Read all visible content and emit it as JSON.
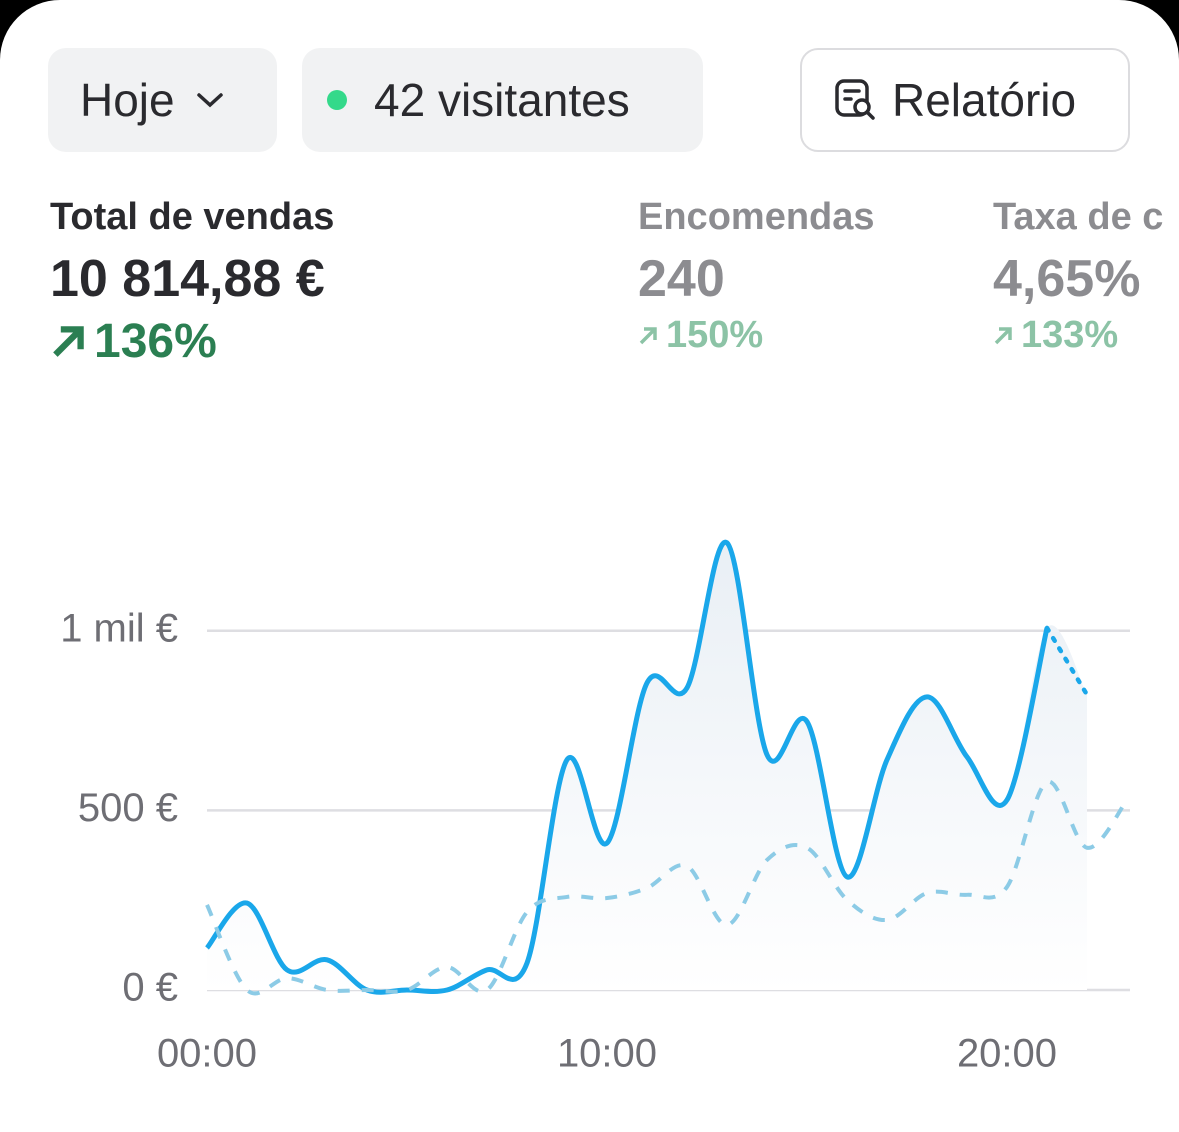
{
  "header": {
    "period": "Hoje",
    "visitors": "42 visitantes",
    "report": "Relatório"
  },
  "metrics": [
    {
      "title": "Total de vendas",
      "value": "10 814,88 €",
      "change": "136%"
    },
    {
      "title": "Encomendas",
      "value": "240",
      "change": "150%"
    },
    {
      "title": "Taxa de c",
      "value": "4,65%",
      "change": "133%"
    }
  ],
  "chart_data": {
    "type": "line",
    "x": [
      0,
      1,
      2,
      3,
      4,
      5,
      6,
      7,
      8,
      9,
      10,
      11,
      12,
      13,
      14,
      15,
      16,
      17,
      18,
      19,
      20,
      21,
      22,
      23
    ],
    "series": [
      {
        "color": "#1aa7ea",
        "style": "solid",
        "values": [
          117,
          242,
          56,
          84,
          0,
          0,
          0,
          56,
          75,
          641,
          409,
          855,
          841,
          1245,
          655,
          747,
          315,
          641,
          816,
          649,
          529,
          1008,
          822,
          null
        ]
      },
      {
        "color": "#8ccbe6",
        "style": "dashed",
        "values": [
          237,
          0,
          33,
          0,
          0,
          0,
          64,
          0,
          217,
          259,
          256,
          284,
          345,
          181,
          362,
          396,
          251,
          195,
          270,
          265,
          287,
          579,
          396,
          529
        ]
      }
    ],
    "xlim": [
      0,
      23
    ],
    "ylim": [
      0,
      1250
    ],
    "xticks": [
      {
        "value": 0,
        "label": "00:00"
      },
      {
        "value": 10,
        "label": "10:00"
      },
      {
        "value": 20,
        "label": "20:00"
      }
    ],
    "yticks": [
      {
        "value": 0,
        "label": "0 €"
      },
      {
        "value": 500,
        "label": "500 €"
      },
      {
        "value": 1000,
        "label": "1 mil €"
      }
    ],
    "grid": true
  }
}
